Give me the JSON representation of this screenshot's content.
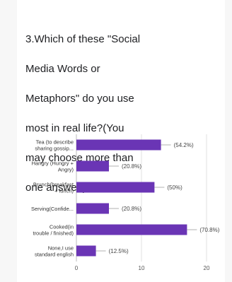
{
  "question": {
    "text": "3.Which of these \"Social Media Words or Metaphors\" do you use most in real life?(You may choose more than one answer.)",
    "lines": [
      "3.Which of these \"Social",
      "Media Words or",
      "Metaphors\" do you use",
      "most in real life?(You",
      "may choose more than",
      "one answer.)"
    ]
  },
  "colors": {
    "bar": "#6A35B5",
    "grid": "#e2e2e2",
    "axis": "#bdbdbd"
  },
  "chart_data": {
    "type": "bar",
    "orientation": "horizontal",
    "categories": [
      [
        "Tea (to describe",
        "sharing gossip..."
      ],
      [
        "Hangry (Hungry +",
        "Angry)"
      ],
      [
        "Brunch(breakfast",
        "+ lunch)"
      ],
      [
        "Serving(Confide..."
      ],
      [
        "Cooked(in",
        "trouble / finished)"
      ],
      [
        "None,I use",
        "standard english"
      ]
    ],
    "values": [
      13,
      5,
      12,
      5,
      17,
      3
    ],
    "data_labels": [
      "(54.2%)",
      "(20.8%)",
      "(50%)",
      "(20.8%)",
      "(70.8%)",
      "(12.5%)"
    ],
    "xlim": [
      0,
      20
    ],
    "xticks": [
      "0",
      "10",
      "20"
    ],
    "grid": true,
    "title": "",
    "xlabel": "",
    "ylabel": ""
  }
}
